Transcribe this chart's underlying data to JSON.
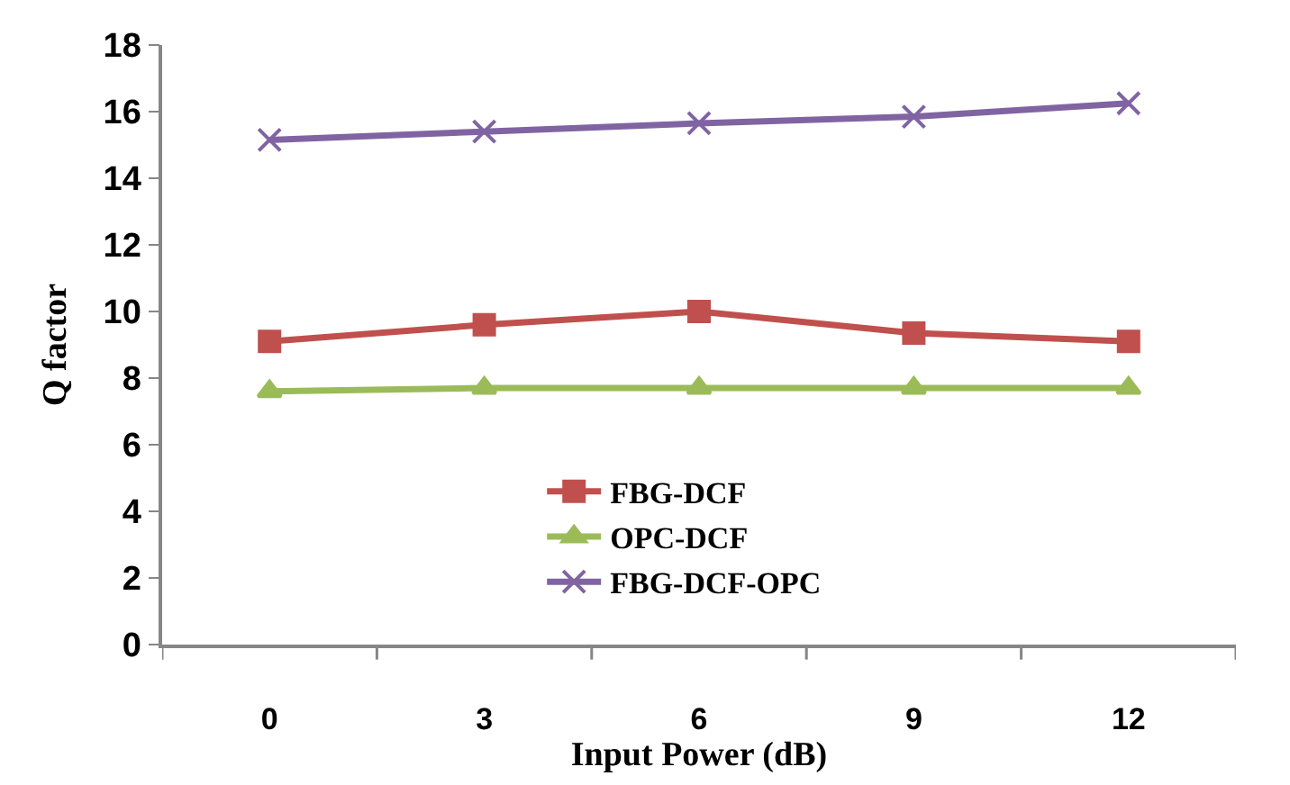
{
  "chart_data": {
    "type": "line",
    "xlabel": "Input Power (dB)",
    "ylabel": "Q factor",
    "categories": [
      "0",
      "3",
      "6",
      "9",
      "12"
    ],
    "series": [
      {
        "name": "FBG-DCF",
        "color": "#c0504d",
        "marker": "square",
        "values": [
          9.1,
          9.6,
          10.0,
          9.35,
          9.1
        ]
      },
      {
        "name": "OPC-DCF",
        "color": "#9bbb59",
        "marker": "triangle",
        "values": [
          7.6,
          7.7,
          7.7,
          7.7,
          7.7
        ]
      },
      {
        "name": "FBG-DCF-OPC",
        "color": "#8064a2",
        "marker": "cross",
        "values": [
          15.15,
          15.4,
          15.65,
          15.85,
          16.25
        ]
      }
    ],
    "ylim": [
      0,
      18
    ],
    "yticks": [
      0,
      2,
      4,
      6,
      8,
      10,
      12,
      14,
      16,
      18
    ],
    "legend": "bottom"
  }
}
